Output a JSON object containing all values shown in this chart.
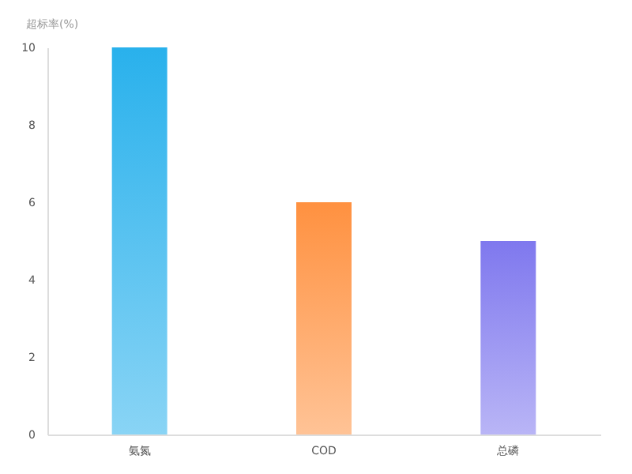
{
  "chart_data": {
    "type": "bar",
    "ylabel": "超标率(%)",
    "categories": [
      "氨氮",
      "COD",
      "总磷"
    ],
    "values": [
      10,
      6,
      5
    ],
    "colors": [
      "#29b1ec",
      "#ff9140",
      "#7f78ee"
    ],
    "ylim": [
      0,
      10
    ],
    "yticks": [
      0,
      2,
      4,
      6,
      8,
      10
    ],
    "grid": false
  }
}
